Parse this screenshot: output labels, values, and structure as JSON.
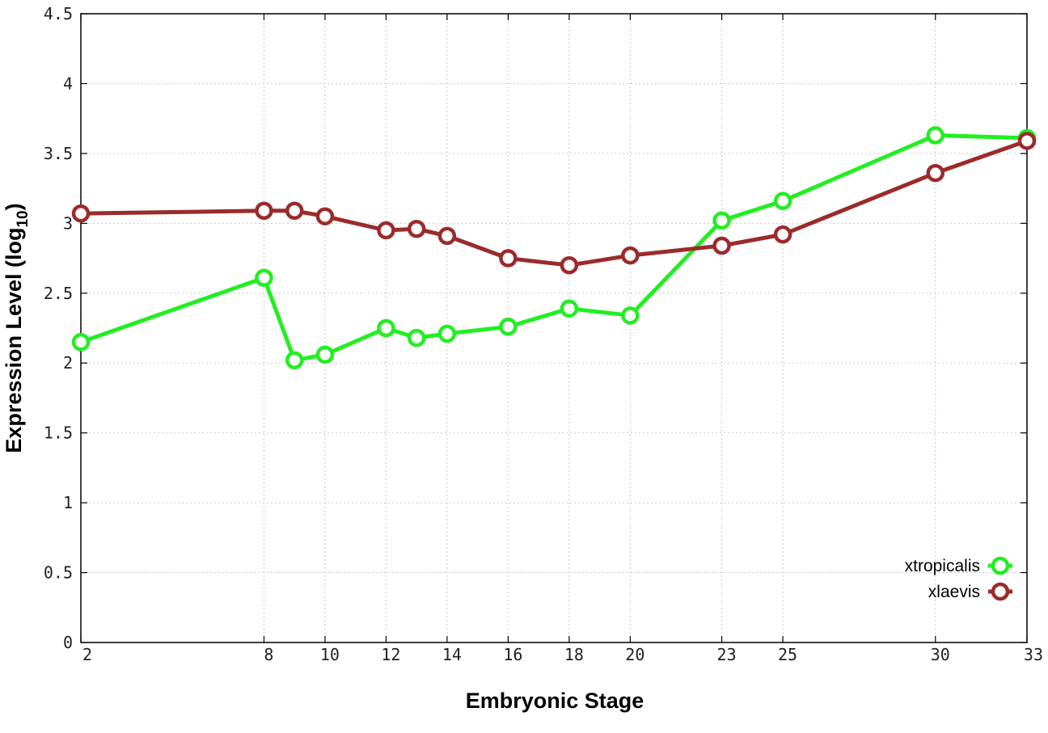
{
  "chart_data": {
    "type": "line",
    "xlabel": "Embryonic Stage",
    "ylabel_main": "Expression Level (log",
    "ylabel_sub": "10",
    "ylabel_end": ")",
    "x_ticks": [
      2,
      8,
      10,
      12,
      14,
      16,
      18,
      20,
      23,
      25,
      30,
      33
    ],
    "y_ticks": [
      "0",
      "0.5",
      "1",
      "1.5",
      "2",
      "2.5",
      "3",
      "3.5",
      "4",
      "4.5"
    ],
    "xlim": [
      2,
      33
    ],
    "ylim": [
      0,
      4.5
    ],
    "grid": true,
    "legend_position": "bottom-right",
    "x": [
      2,
      8,
      9,
      10,
      12,
      13,
      14,
      16,
      18,
      20,
      23,
      25,
      30,
      33
    ],
    "series": [
      {
        "name": "xtropicalis",
        "color": "#22ee22",
        "values": [
          2.15,
          2.61,
          2.02,
          2.06,
          2.25,
          2.18,
          2.21,
          2.26,
          2.39,
          2.34,
          3.02,
          3.16,
          3.63,
          3.61
        ]
      },
      {
        "name": "xlaevis",
        "color": "#9b2b2b",
        "values": [
          3.07,
          3.09,
          3.09,
          3.05,
          2.95,
          2.96,
          2.91,
          2.75,
          2.7,
          2.77,
          2.84,
          2.92,
          3.36,
          3.59
        ]
      }
    ]
  }
}
